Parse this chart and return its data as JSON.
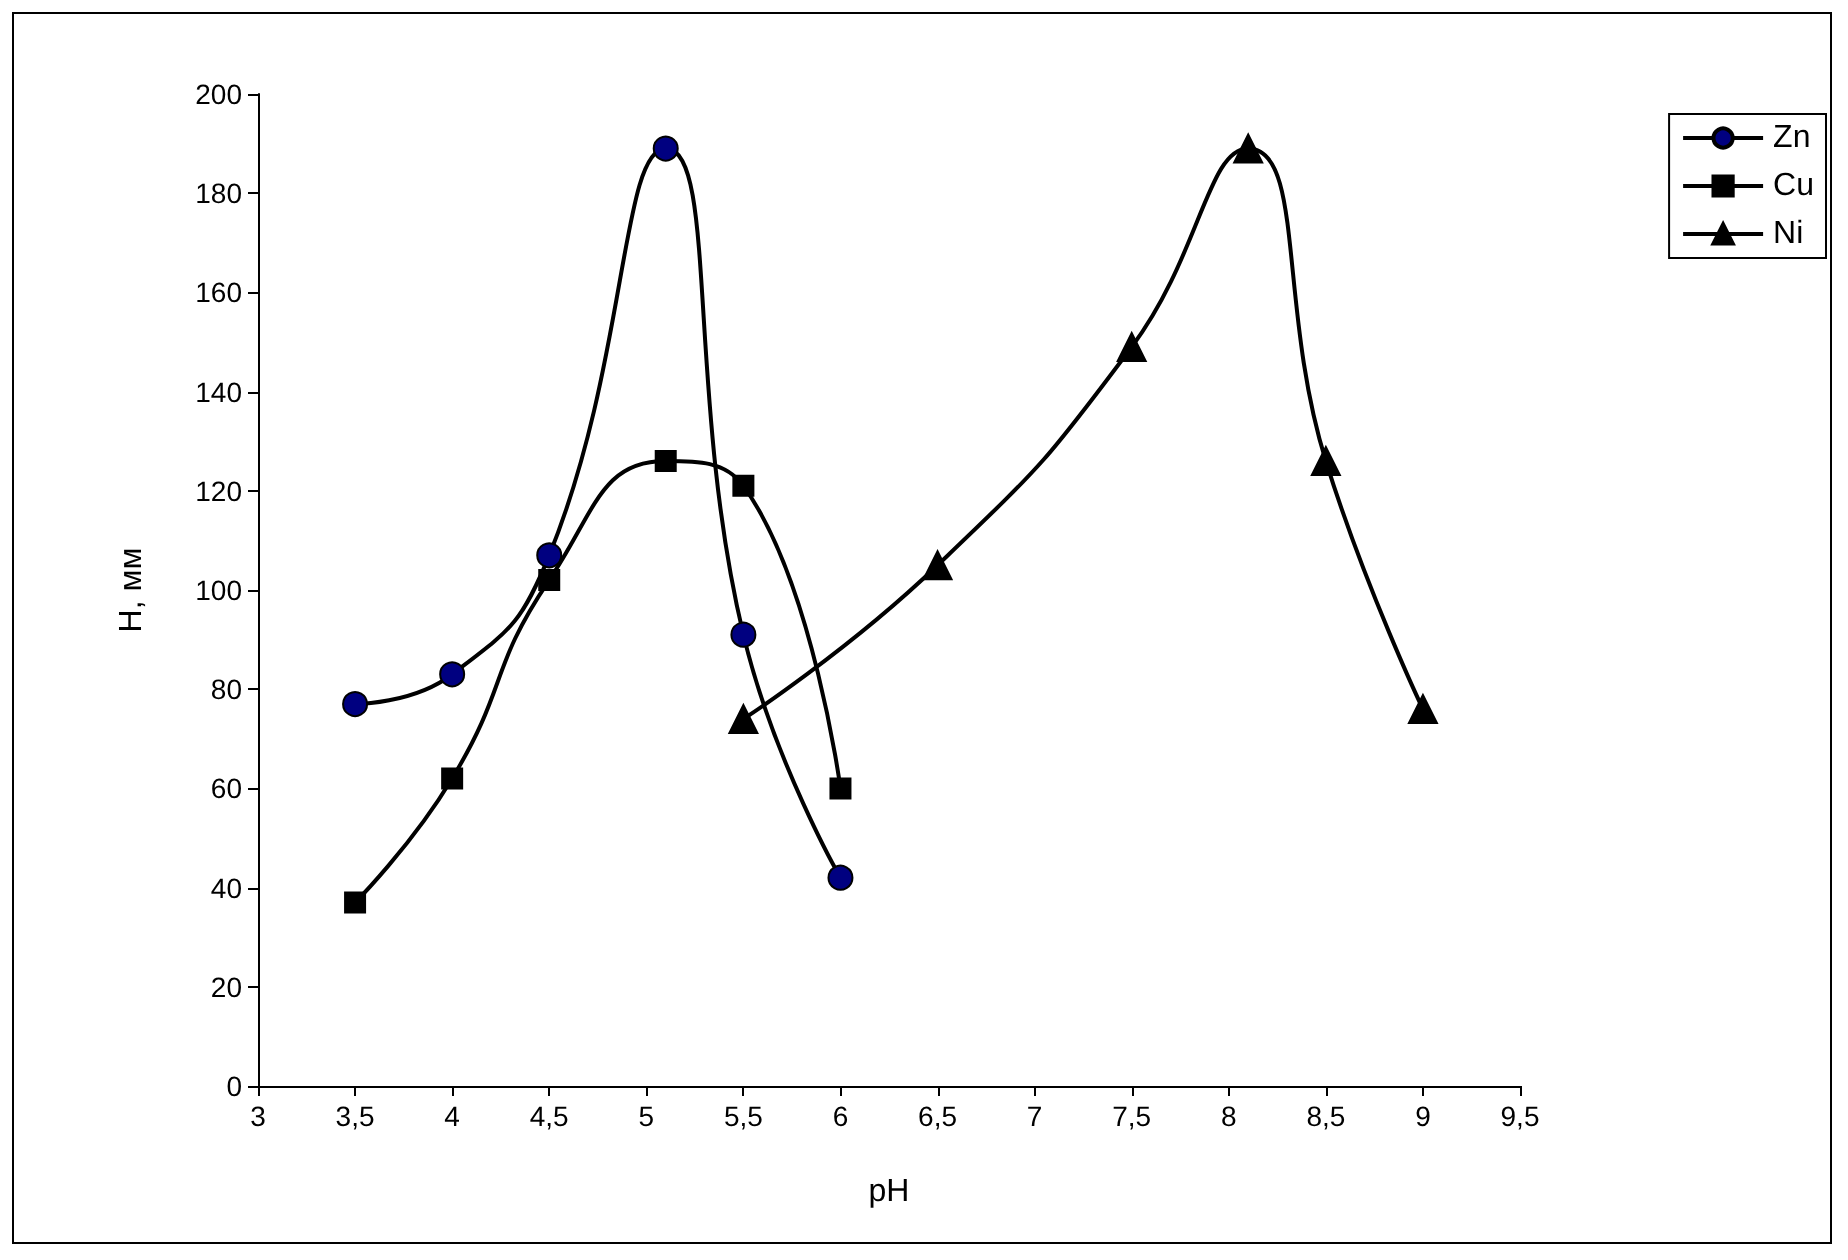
{
  "chart_data": {
    "type": "line",
    "xlabel": "pH",
    "ylabel": "H, мм",
    "xlim": [
      3,
      9.5
    ],
    "xticks": [
      3,
      {
        "value": 3.5,
        "label": "3,5"
      },
      4,
      {
        "value": 4.5,
        "label": "4,5"
      },
      5,
      {
        "value": 5.5,
        "label": "5,5"
      },
      6,
      {
        "value": 6.5,
        "label": "6,5"
      },
      7,
      {
        "value": 7.5,
        "label": "7,5"
      },
      8,
      {
        "value": 8.5,
        "label": "8,5"
      },
      9,
      {
        "value": 9.5,
        "label": "9,5"
      }
    ],
    "ylim": [
      0,
      200
    ],
    "yticks": [
      0,
      20,
      40,
      60,
      80,
      100,
      120,
      140,
      160,
      180,
      200
    ],
    "grid": false,
    "legend": "top right",
    "line_style": "solid",
    "series": [
      {
        "name": "Zn",
        "color": "#000080",
        "marker": "circle",
        "x": [
          3.5,
          4,
          4.5,
          5.1,
          5.5,
          6
        ],
        "values": [
          77,
          83,
          107,
          189,
          91,
          42
        ]
      },
      {
        "name": "Cu",
        "color": "#000000",
        "marker": "square",
        "x": [
          3.5,
          4,
          4.5,
          5.1,
          5.5,
          6
        ],
        "values": [
          37,
          62,
          102,
          126,
          121,
          60
        ]
      },
      {
        "name": "Ni",
        "color": "#000000",
        "marker": "triangle",
        "x": [
          5.5,
          6.5,
          7.5,
          8.1,
          8.5,
          9
        ],
        "values": [
          74,
          105,
          149,
          189,
          126,
          76
        ]
      }
    ]
  }
}
